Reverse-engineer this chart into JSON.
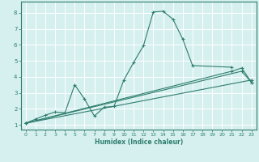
{
  "xlabel": "Humidex (Indice chaleur)",
  "xlim": [
    -0.5,
    23.5
  ],
  "ylim": [
    0.7,
    8.7
  ],
  "xticks": [
    0,
    1,
    2,
    3,
    4,
    5,
    6,
    7,
    8,
    9,
    10,
    11,
    12,
    13,
    14,
    15,
    16,
    17,
    18,
    19,
    20,
    21,
    22,
    23
  ],
  "yticks": [
    1,
    2,
    3,
    4,
    5,
    6,
    7,
    8
  ],
  "background_color": "#d6f0ef",
  "grid_color": "#ffffff",
  "line_color": "#2e7d6e",
  "lines": [
    {
      "x": [
        0,
        1,
        2,
        3,
        4,
        5,
        6,
        7,
        8,
        9,
        10,
        11,
        12,
        13,
        14,
        15,
        16,
        17,
        21
      ],
      "y": [
        1.1,
        1.35,
        1.6,
        1.8,
        1.75,
        3.5,
        2.6,
        1.55,
        2.1,
        2.15,
        3.8,
        4.9,
        5.95,
        8.05,
        8.1,
        7.6,
        6.35,
        4.7,
        4.6
      ]
    },
    {
      "x": [
        0,
        23
      ],
      "y": [
        1.1,
        3.8
      ]
    },
    {
      "x": [
        0,
        22,
        23
      ],
      "y": [
        1.1,
        4.35,
        3.65
      ]
    },
    {
      "x": [
        0,
        21,
        22,
        23
      ],
      "y": [
        1.1,
        4.35,
        4.55,
        3.65
      ]
    }
  ]
}
